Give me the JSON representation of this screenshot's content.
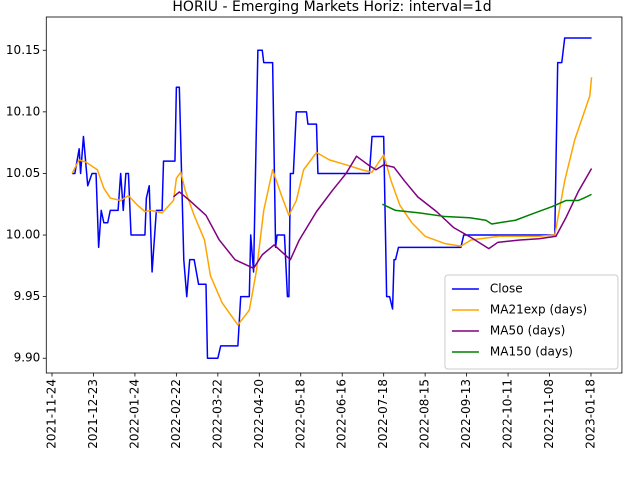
{
  "chart_data": {
    "type": "line",
    "title": "HORIU - Emerging Markets Horiz: interval=1d",
    "xlim": [
      "2021-11-20",
      "2023-03-12"
    ],
    "xticks": [
      "2021-11-24",
      "2021-12-23",
      "2022-01-24",
      "2022-02-22",
      "2022-03-22",
      "2022-04-20",
      "2022-05-18",
      "2022-06-16",
      "2022-07-18",
      "2022-08-15",
      "2022-09-13",
      "2022-10-11",
      "2022-11-08",
      "2023-01-18"
    ],
    "ylim": [
      9.888,
      10.177
    ],
    "yticks": [
      {
        "value": 9.9,
        "label": "9.90"
      },
      9.95,
      {
        "value": 10,
        "label": "10.00"
      },
      10.05,
      {
        "value": 10.1,
        "label": "10.10"
      },
      10.15
    ],
    "grid": false,
    "legend": "lower right",
    "series": [
      {
        "name": "Close",
        "color": "#0000ff",
        "x": [
          "2021-12-08",
          "2021-12-10",
          "2021-12-13",
          "2021-12-14",
          "2021-12-16",
          "2021-12-19",
          "2021-12-22",
          "2021-12-25",
          "2021-12-27",
          "2021-12-29",
          "2021-12-31",
          "2022-01-03",
          "2022-01-05",
          "2022-01-11",
          "2022-01-13",
          "2022-01-15",
          "2022-01-17",
          "2022-01-19",
          "2022-01-21",
          "2022-01-31",
          "2022-02-01",
          "2022-02-03",
          "2022-02-05",
          "2022-02-08",
          "2022-02-12",
          "2022-02-13",
          "2022-02-21",
          "2022-02-22",
          "2022-02-24",
          "2022-02-27",
          "2022-03-01",
          "2022-03-03",
          "2022-03-06",
          "2022-03-09",
          "2022-03-14",
          "2022-03-15",
          "2022-03-22",
          "2022-03-24",
          "2022-04-05",
          "2022-04-07",
          "2022-04-13",
          "2022-04-14",
          "2022-04-16",
          "2022-04-19",
          "2022-04-22",
          "2022-04-23",
          "2022-04-29",
          "2022-05-01",
          "2022-05-02",
          "2022-05-07",
          "2022-05-09",
          "2022-05-10",
          "2022-05-11",
          "2022-05-13",
          "2022-05-15",
          "2022-05-22",
          "2022-05-23",
          "2022-05-29",
          "2022-05-30",
          "2022-07-07",
          "2022-07-09",
          "2022-07-18",
          "2022-07-20",
          "2022-07-22",
          "2022-07-24",
          "2022-07-25",
          "2022-07-26",
          "2022-07-28",
          "2022-09-09",
          "2022-09-11",
          "2022-11-17",
          "2022-11-22",
          "2022-11-29",
          "2022-12-04",
          "2023-01-19"
        ],
        "values": [
          10.05,
          10.05,
          10.07,
          10.05,
          10.08,
          10.04,
          10.05,
          10.05,
          9.99,
          10.02,
          10.01,
          10.01,
          10.02,
          10.02,
          10.05,
          10.02,
          10.05,
          10.05,
          10.0,
          10.0,
          10.03,
          10.04,
          9.97,
          10.02,
          10.02,
          10.06,
          10.06,
          10.12,
          10.12,
          9.98,
          9.95,
          9.98,
          9.98,
          9.96,
          9.96,
          9.9,
          9.9,
          9.91,
          9.91,
          9.95,
          9.95,
          10.0,
          9.97,
          10.15,
          10.15,
          10.14,
          10.14,
          9.99,
          10.0,
          10.0,
          9.95,
          9.95,
          10.05,
          10.05,
          10.1,
          10.1,
          10.09,
          10.09,
          10.05,
          10.05,
          10.08,
          10.08,
          9.95,
          9.95,
          9.94,
          9.98,
          9.98,
          9.99,
          9.99,
          10.0,
          10.0,
          10.14,
          10.14,
          10.16,
          10.16
        ]
      },
      {
        "name": "MA21exp (days)",
        "color": "#ffa500",
        "x": [
          "2021-12-08",
          "2021-12-13",
          "2021-12-18",
          "2021-12-26",
          "2021-12-31",
          "2022-01-05",
          "2022-01-13",
          "2022-01-19",
          "2022-01-26",
          "2022-01-31",
          "2022-02-04",
          "2022-02-12",
          "2022-02-20",
          "2022-02-22",
          "2022-02-25",
          "2022-02-28",
          "2022-03-06",
          "2022-03-13",
          "2022-03-17",
          "2022-03-25",
          "2022-04-05",
          "2022-04-13",
          "2022-04-18",
          "2022-04-23",
          "2022-04-29",
          "2022-05-05",
          "2022-05-10",
          "2022-05-15",
          "2022-05-20",
          "2022-05-29",
          "2022-06-07",
          "2022-06-19",
          "2022-07-01",
          "2022-07-09",
          "2022-07-18",
          "2022-07-23",
          "2022-07-29",
          "2022-08-06",
          "2022-08-15",
          "2022-08-29",
          "2022-09-09",
          "2022-09-16",
          "2022-10-05",
          "2022-11-01",
          "2022-11-17",
          "2022-12-04",
          "2022-12-21",
          "2023-01-16",
          "2023-01-19"
        ],
        "values": [
          10.05,
          10.061,
          10.059,
          10.053,
          10.038,
          10.03,
          10.028,
          10.032,
          10.024,
          10.019,
          10.02,
          10.018,
          10.028,
          10.046,
          10.051,
          10.036,
          10.016,
          9.996,
          9.967,
          9.945,
          9.927,
          9.939,
          9.971,
          10.02,
          10.053,
          10.032,
          10.016,
          10.028,
          10.053,
          10.067,
          10.061,
          10.057,
          10.053,
          10.051,
          10.065,
          10.044,
          10.024,
          10.01,
          9.999,
          9.993,
          9.991,
          9.996,
          9.999,
          9.999,
          10.0,
          10.044,
          10.077,
          10.113,
          10.128
        ]
      },
      {
        "name": "MA50 (days)",
        "color": "#800080",
        "x": [
          "2022-02-20",
          "2022-02-24",
          "2022-03-03",
          "2022-03-14",
          "2022-03-23",
          "2022-04-03",
          "2022-04-16",
          "2022-04-22",
          "2022-04-30",
          "2022-05-11",
          "2022-05-17",
          "2022-05-29",
          "2022-06-09",
          "2022-06-19",
          "2022-06-27",
          "2022-07-06",
          "2022-07-12",
          "2022-07-18",
          "2022-07-25",
          "2022-08-01",
          "2022-08-10",
          "2022-08-23",
          "2022-09-04",
          "2022-09-16",
          "2022-09-28",
          "2022-10-04",
          "2022-10-19",
          "2022-11-01",
          "2022-11-19",
          "2022-12-06",
          "2022-12-27",
          "2023-01-19"
        ],
        "values": [
          10.031,
          10.035,
          10.028,
          10.016,
          9.996,
          9.98,
          9.973,
          9.984,
          9.992,
          9.98,
          9.996,
          10.019,
          10.036,
          10.05,
          10.064,
          10.057,
          10.053,
          10.057,
          10.055,
          10.044,
          10.031,
          10.019,
          10.006,
          9.998,
          9.989,
          9.994,
          9.996,
          9.997,
          9.999,
          10.014,
          10.035,
          10.054
        ]
      },
      {
        "name": "MA150 (days)",
        "color": "#008000",
        "x": [
          "2022-07-17",
          "2022-07-26",
          "2022-08-11",
          "2022-08-29",
          "2022-09-15",
          "2022-09-26",
          "2022-09-30",
          "2022-10-05",
          "2022-10-16",
          "2022-10-27",
          "2022-11-12",
          "2022-12-06",
          "2022-12-27",
          "2023-01-06",
          "2023-01-19"
        ],
        "values": [
          10.025,
          10.02,
          10.018,
          10.015,
          10.014,
          10.012,
          10.009,
          10.01,
          10.012,
          10.017,
          10.023,
          10.028,
          10.028,
          10.03,
          10.033
        ]
      }
    ]
  }
}
